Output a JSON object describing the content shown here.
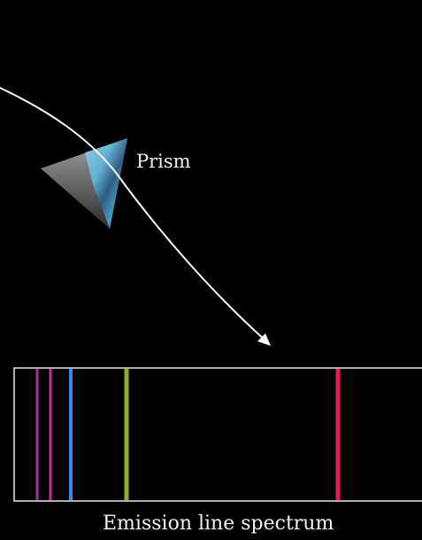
{
  "prism": {
    "label": "Prism"
  },
  "spectrum": {
    "caption": "Emission line spectrum",
    "lines": [
      {
        "name": "violet-line",
        "color": "#a0329a"
      },
      {
        "name": "magenta-line",
        "color": "#c42f86"
      },
      {
        "name": "blue-line",
        "color": "#2f8fe6"
      },
      {
        "name": "green-line",
        "color": "#8fae2c"
      },
      {
        "name": "red-line",
        "color": "#e21c56"
      }
    ]
  },
  "colors": {
    "background": "#000000",
    "light_ray": "#ffffff",
    "frame": "#e8e8e8",
    "text": "#f2f2f2"
  }
}
